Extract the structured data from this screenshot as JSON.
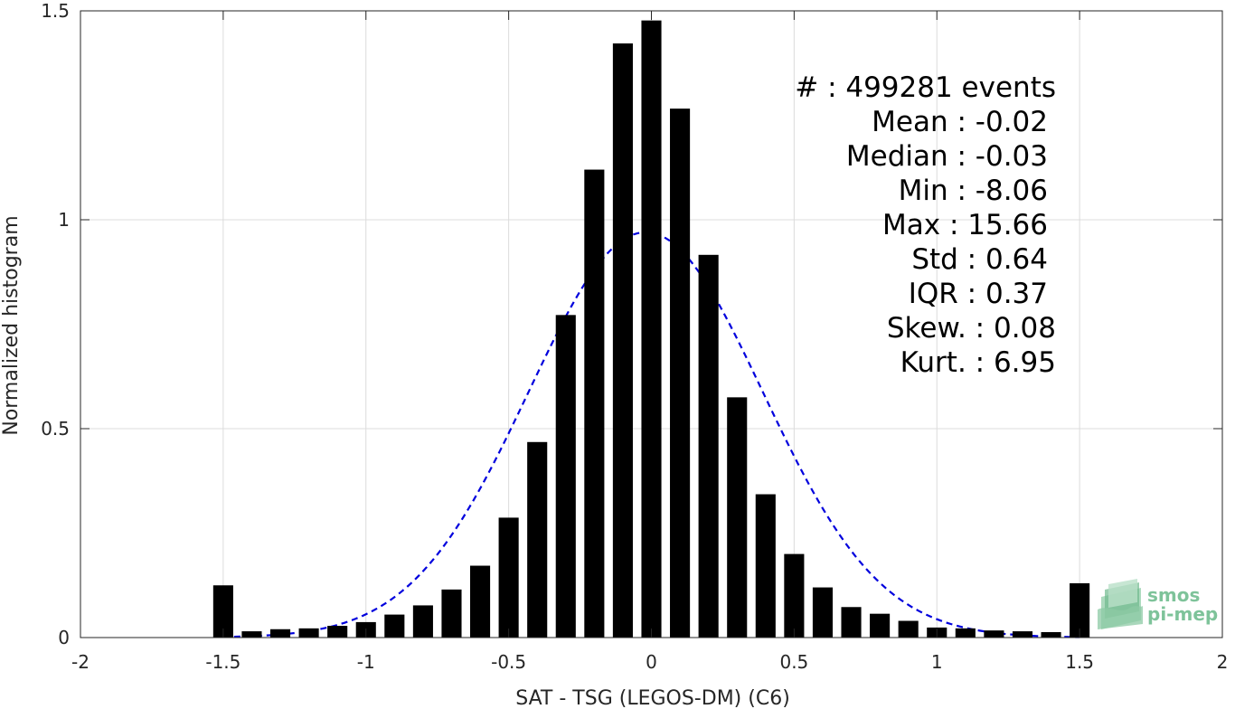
{
  "chart_data": {
    "type": "bar",
    "xlabel": "SAT - TSG (LEGOS-DM) (C6)",
    "ylabel": "Normalized histogram",
    "xlim": [
      -2,
      2
    ],
    "ylim": [
      0,
      1.5
    ],
    "xticks": [
      -2,
      -1.5,
      -1,
      -0.5,
      0,
      0.5,
      1,
      1.5,
      2
    ],
    "xtick_labels": [
      "-2",
      "-1.5",
      "-1",
      "-0.5",
      "0",
      "0.5",
      "1",
      "1.5",
      "2"
    ],
    "yticks": [
      0,
      0.5,
      1,
      1.5
    ],
    "ytick_labels": [
      "0",
      "0.5",
      "1",
      "1.5"
    ],
    "grid": true,
    "bar_width": 0.07,
    "bar_color": "#000000",
    "bars": [
      {
        "x": -1.5,
        "y": 0.125
      },
      {
        "x": -1.4,
        "y": 0.015
      },
      {
        "x": -1.3,
        "y": 0.02
      },
      {
        "x": -1.2,
        "y": 0.022
      },
      {
        "x": -1.1,
        "y": 0.028
      },
      {
        "x": -1.0,
        "y": 0.037
      },
      {
        "x": -0.9,
        "y": 0.055
      },
      {
        "x": -0.8,
        "y": 0.077
      },
      {
        "x": -0.7,
        "y": 0.115
      },
      {
        "x": -0.6,
        "y": 0.172
      },
      {
        "x": -0.5,
        "y": 0.287
      },
      {
        "x": -0.4,
        "y": 0.468
      },
      {
        "x": -0.3,
        "y": 0.772
      },
      {
        "x": -0.2,
        "y": 1.12
      },
      {
        "x": -0.1,
        "y": 1.422
      },
      {
        "x": 0.0,
        "y": 1.477
      },
      {
        "x": 0.1,
        "y": 1.266
      },
      {
        "x": 0.2,
        "y": 0.916
      },
      {
        "x": 0.3,
        "y": 0.575
      },
      {
        "x": 0.4,
        "y": 0.343
      },
      {
        "x": 0.5,
        "y": 0.2
      },
      {
        "x": 0.6,
        "y": 0.12
      },
      {
        "x": 0.7,
        "y": 0.073
      },
      {
        "x": 0.8,
        "y": 0.057
      },
      {
        "x": 0.9,
        "y": 0.04
      },
      {
        "x": 1.0,
        "y": 0.024
      },
      {
        "x": 1.1,
        "y": 0.022
      },
      {
        "x": 1.2,
        "y": 0.017
      },
      {
        "x": 1.3,
        "y": 0.015
      },
      {
        "x": 1.4,
        "y": 0.013
      },
      {
        "x": 1.5,
        "y": 0.13
      }
    ],
    "fit_curve": {
      "style": "dashed",
      "color": "#0000dd",
      "mean": -0.02,
      "std": 0.41,
      "peak": 0.97,
      "x_range": [
        -1.5,
        1.5
      ]
    },
    "annotations": [
      "#  : 499281 events",
      "Mean : -0.02",
      "Median : -0.03",
      "Min : -8.06",
      "Max : 15.66",
      "Std : 0.64",
      "IQR : 0.37",
      "Skew. : 0.08",
      "Kurt. : 6.95"
    ]
  },
  "logo": {
    "line1": "smos",
    "line2": "pi-mep",
    "color": "#7ec39a"
  }
}
